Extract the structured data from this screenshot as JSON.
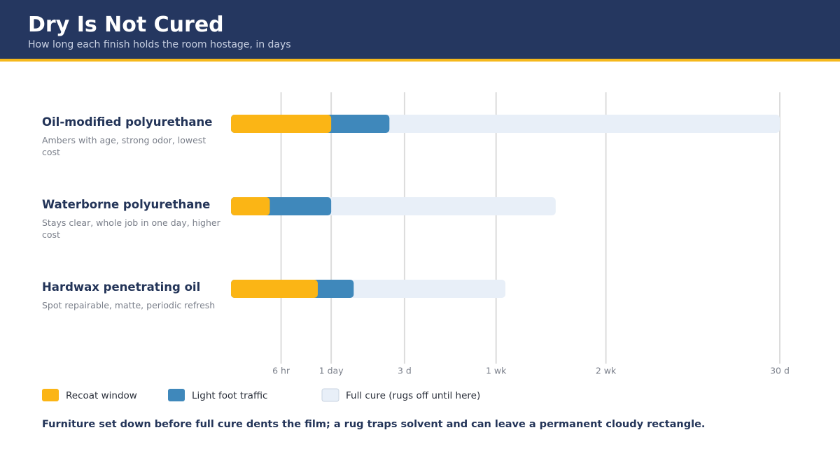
{
  "header": {
    "title": "Dry Is Not Cured",
    "subtitle": "How long each finish holds the room hostage, in days"
  },
  "chart_data": {
    "type": "bar",
    "orientation": "horizontal",
    "scale": "sqrt",
    "categories": [
      "Oil-modified polyurethane",
      "Waterborne polyurethane",
      "Hardwax penetrating oil"
    ],
    "descriptions": [
      "Ambers with age, strong odor, lowest cost",
      "Stays clear, whole job in one day, higher cost",
      "Spot repairable, matte, periodic refresh"
    ],
    "series": [
      {
        "name": "Recoat window",
        "color": "#fbb515",
        "values": [
          1,
          0.15,
          0.75
        ]
      },
      {
        "name": "Light foot traffic",
        "color": "#3f88bb",
        "values": [
          2.5,
          1,
          1.5
        ]
      },
      {
        "name": "Full cure (rugs off until here)",
        "color": "#e8eff8",
        "values": [
          30,
          10.5,
          7.5
        ]
      }
    ],
    "xlim": [
      0,
      30
    ],
    "xticks": [
      {
        "value": 0.25,
        "label": "6 hr"
      },
      {
        "value": 1,
        "label": "1 day"
      },
      {
        "value": 3,
        "label": "3 d"
      },
      {
        "value": 7,
        "label": "1 wk"
      },
      {
        "value": 14,
        "label": "2 wk"
      },
      {
        "value": 30,
        "label": "30 d"
      }
    ],
    "grid": true,
    "note": "Furniture set down before full cure dents the film; a rug traps solvent and can leave a permanent cloudy rectangle."
  }
}
